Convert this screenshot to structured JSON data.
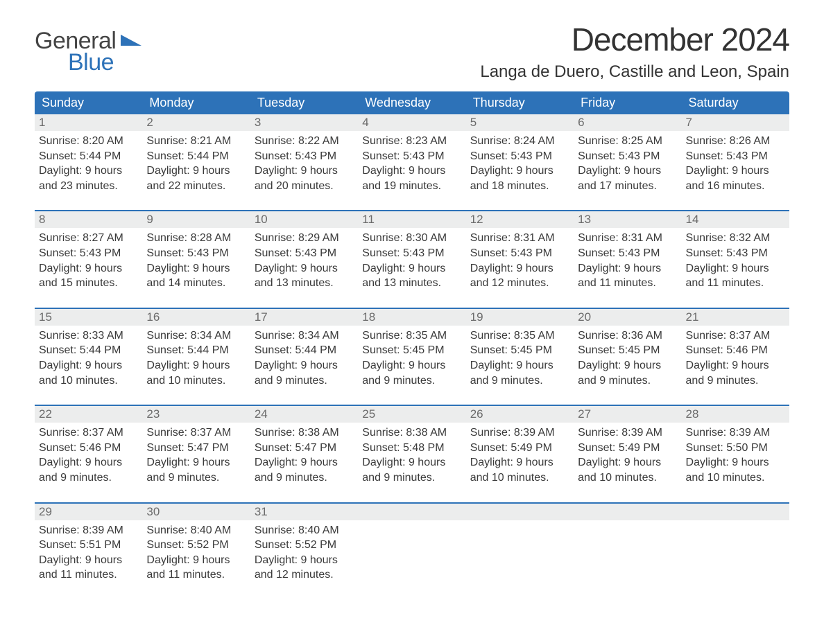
{
  "brand": {
    "word1": "General",
    "word2": "Blue",
    "accent_color": "#2d72b8"
  },
  "title": "December 2024",
  "location": "Langa de Duero, Castille and Leon, Spain",
  "colors": {
    "header_bg": "#2d72b8",
    "header_text": "#ffffff",
    "daynum_bg": "#eceded",
    "body_text": "#3a3a3a",
    "page_bg": "#ffffff"
  },
  "day_names": [
    "Sunday",
    "Monday",
    "Tuesday",
    "Wednesday",
    "Thursday",
    "Friday",
    "Saturday"
  ],
  "weeks": [
    [
      {
        "n": "1",
        "sunrise": "Sunrise: 8:20 AM",
        "sunset": "Sunset: 5:44 PM",
        "d1": "Daylight: 9 hours",
        "d2": "and 23 minutes."
      },
      {
        "n": "2",
        "sunrise": "Sunrise: 8:21 AM",
        "sunset": "Sunset: 5:44 PM",
        "d1": "Daylight: 9 hours",
        "d2": "and 22 minutes."
      },
      {
        "n": "3",
        "sunrise": "Sunrise: 8:22 AM",
        "sunset": "Sunset: 5:43 PM",
        "d1": "Daylight: 9 hours",
        "d2": "and 20 minutes."
      },
      {
        "n": "4",
        "sunrise": "Sunrise: 8:23 AM",
        "sunset": "Sunset: 5:43 PM",
        "d1": "Daylight: 9 hours",
        "d2": "and 19 minutes."
      },
      {
        "n": "5",
        "sunrise": "Sunrise: 8:24 AM",
        "sunset": "Sunset: 5:43 PM",
        "d1": "Daylight: 9 hours",
        "d2": "and 18 minutes."
      },
      {
        "n": "6",
        "sunrise": "Sunrise: 8:25 AM",
        "sunset": "Sunset: 5:43 PM",
        "d1": "Daylight: 9 hours",
        "d2": "and 17 minutes."
      },
      {
        "n": "7",
        "sunrise": "Sunrise: 8:26 AM",
        "sunset": "Sunset: 5:43 PM",
        "d1": "Daylight: 9 hours",
        "d2": "and 16 minutes."
      }
    ],
    [
      {
        "n": "8",
        "sunrise": "Sunrise: 8:27 AM",
        "sunset": "Sunset: 5:43 PM",
        "d1": "Daylight: 9 hours",
        "d2": "and 15 minutes."
      },
      {
        "n": "9",
        "sunrise": "Sunrise: 8:28 AM",
        "sunset": "Sunset: 5:43 PM",
        "d1": "Daylight: 9 hours",
        "d2": "and 14 minutes."
      },
      {
        "n": "10",
        "sunrise": "Sunrise: 8:29 AM",
        "sunset": "Sunset: 5:43 PM",
        "d1": "Daylight: 9 hours",
        "d2": "and 13 minutes."
      },
      {
        "n": "11",
        "sunrise": "Sunrise: 8:30 AM",
        "sunset": "Sunset: 5:43 PM",
        "d1": "Daylight: 9 hours",
        "d2": "and 13 minutes."
      },
      {
        "n": "12",
        "sunrise": "Sunrise: 8:31 AM",
        "sunset": "Sunset: 5:43 PM",
        "d1": "Daylight: 9 hours",
        "d2": "and 12 minutes."
      },
      {
        "n": "13",
        "sunrise": "Sunrise: 8:31 AM",
        "sunset": "Sunset: 5:43 PM",
        "d1": "Daylight: 9 hours",
        "d2": "and 11 minutes."
      },
      {
        "n": "14",
        "sunrise": "Sunrise: 8:32 AM",
        "sunset": "Sunset: 5:43 PM",
        "d1": "Daylight: 9 hours",
        "d2": "and 11 minutes."
      }
    ],
    [
      {
        "n": "15",
        "sunrise": "Sunrise: 8:33 AM",
        "sunset": "Sunset: 5:44 PM",
        "d1": "Daylight: 9 hours",
        "d2": "and 10 minutes."
      },
      {
        "n": "16",
        "sunrise": "Sunrise: 8:34 AM",
        "sunset": "Sunset: 5:44 PM",
        "d1": "Daylight: 9 hours",
        "d2": "and 10 minutes."
      },
      {
        "n": "17",
        "sunrise": "Sunrise: 8:34 AM",
        "sunset": "Sunset: 5:44 PM",
        "d1": "Daylight: 9 hours",
        "d2": "and 9 minutes."
      },
      {
        "n": "18",
        "sunrise": "Sunrise: 8:35 AM",
        "sunset": "Sunset: 5:45 PM",
        "d1": "Daylight: 9 hours",
        "d2": "and 9 minutes."
      },
      {
        "n": "19",
        "sunrise": "Sunrise: 8:35 AM",
        "sunset": "Sunset: 5:45 PM",
        "d1": "Daylight: 9 hours",
        "d2": "and 9 minutes."
      },
      {
        "n": "20",
        "sunrise": "Sunrise: 8:36 AM",
        "sunset": "Sunset: 5:45 PM",
        "d1": "Daylight: 9 hours",
        "d2": "and 9 minutes."
      },
      {
        "n": "21",
        "sunrise": "Sunrise: 8:37 AM",
        "sunset": "Sunset: 5:46 PM",
        "d1": "Daylight: 9 hours",
        "d2": "and 9 minutes."
      }
    ],
    [
      {
        "n": "22",
        "sunrise": "Sunrise: 8:37 AM",
        "sunset": "Sunset: 5:46 PM",
        "d1": "Daylight: 9 hours",
        "d2": "and 9 minutes."
      },
      {
        "n": "23",
        "sunrise": "Sunrise: 8:37 AM",
        "sunset": "Sunset: 5:47 PM",
        "d1": "Daylight: 9 hours",
        "d2": "and 9 minutes."
      },
      {
        "n": "24",
        "sunrise": "Sunrise: 8:38 AM",
        "sunset": "Sunset: 5:47 PM",
        "d1": "Daylight: 9 hours",
        "d2": "and 9 minutes."
      },
      {
        "n": "25",
        "sunrise": "Sunrise: 8:38 AM",
        "sunset": "Sunset: 5:48 PM",
        "d1": "Daylight: 9 hours",
        "d2": "and 9 minutes."
      },
      {
        "n": "26",
        "sunrise": "Sunrise: 8:39 AM",
        "sunset": "Sunset: 5:49 PM",
        "d1": "Daylight: 9 hours",
        "d2": "and 10 minutes."
      },
      {
        "n": "27",
        "sunrise": "Sunrise: 8:39 AM",
        "sunset": "Sunset: 5:49 PM",
        "d1": "Daylight: 9 hours",
        "d2": "and 10 minutes."
      },
      {
        "n": "28",
        "sunrise": "Sunrise: 8:39 AM",
        "sunset": "Sunset: 5:50 PM",
        "d1": "Daylight: 9 hours",
        "d2": "and 10 minutes."
      }
    ],
    [
      {
        "n": "29",
        "sunrise": "Sunrise: 8:39 AM",
        "sunset": "Sunset: 5:51 PM",
        "d1": "Daylight: 9 hours",
        "d2": "and 11 minutes."
      },
      {
        "n": "30",
        "sunrise": "Sunrise: 8:40 AM",
        "sunset": "Sunset: 5:52 PM",
        "d1": "Daylight: 9 hours",
        "d2": "and 11 minutes."
      },
      {
        "n": "31",
        "sunrise": "Sunrise: 8:40 AM",
        "sunset": "Sunset: 5:52 PM",
        "d1": "Daylight: 9 hours",
        "d2": "and 12 minutes."
      },
      null,
      null,
      null,
      null
    ]
  ]
}
